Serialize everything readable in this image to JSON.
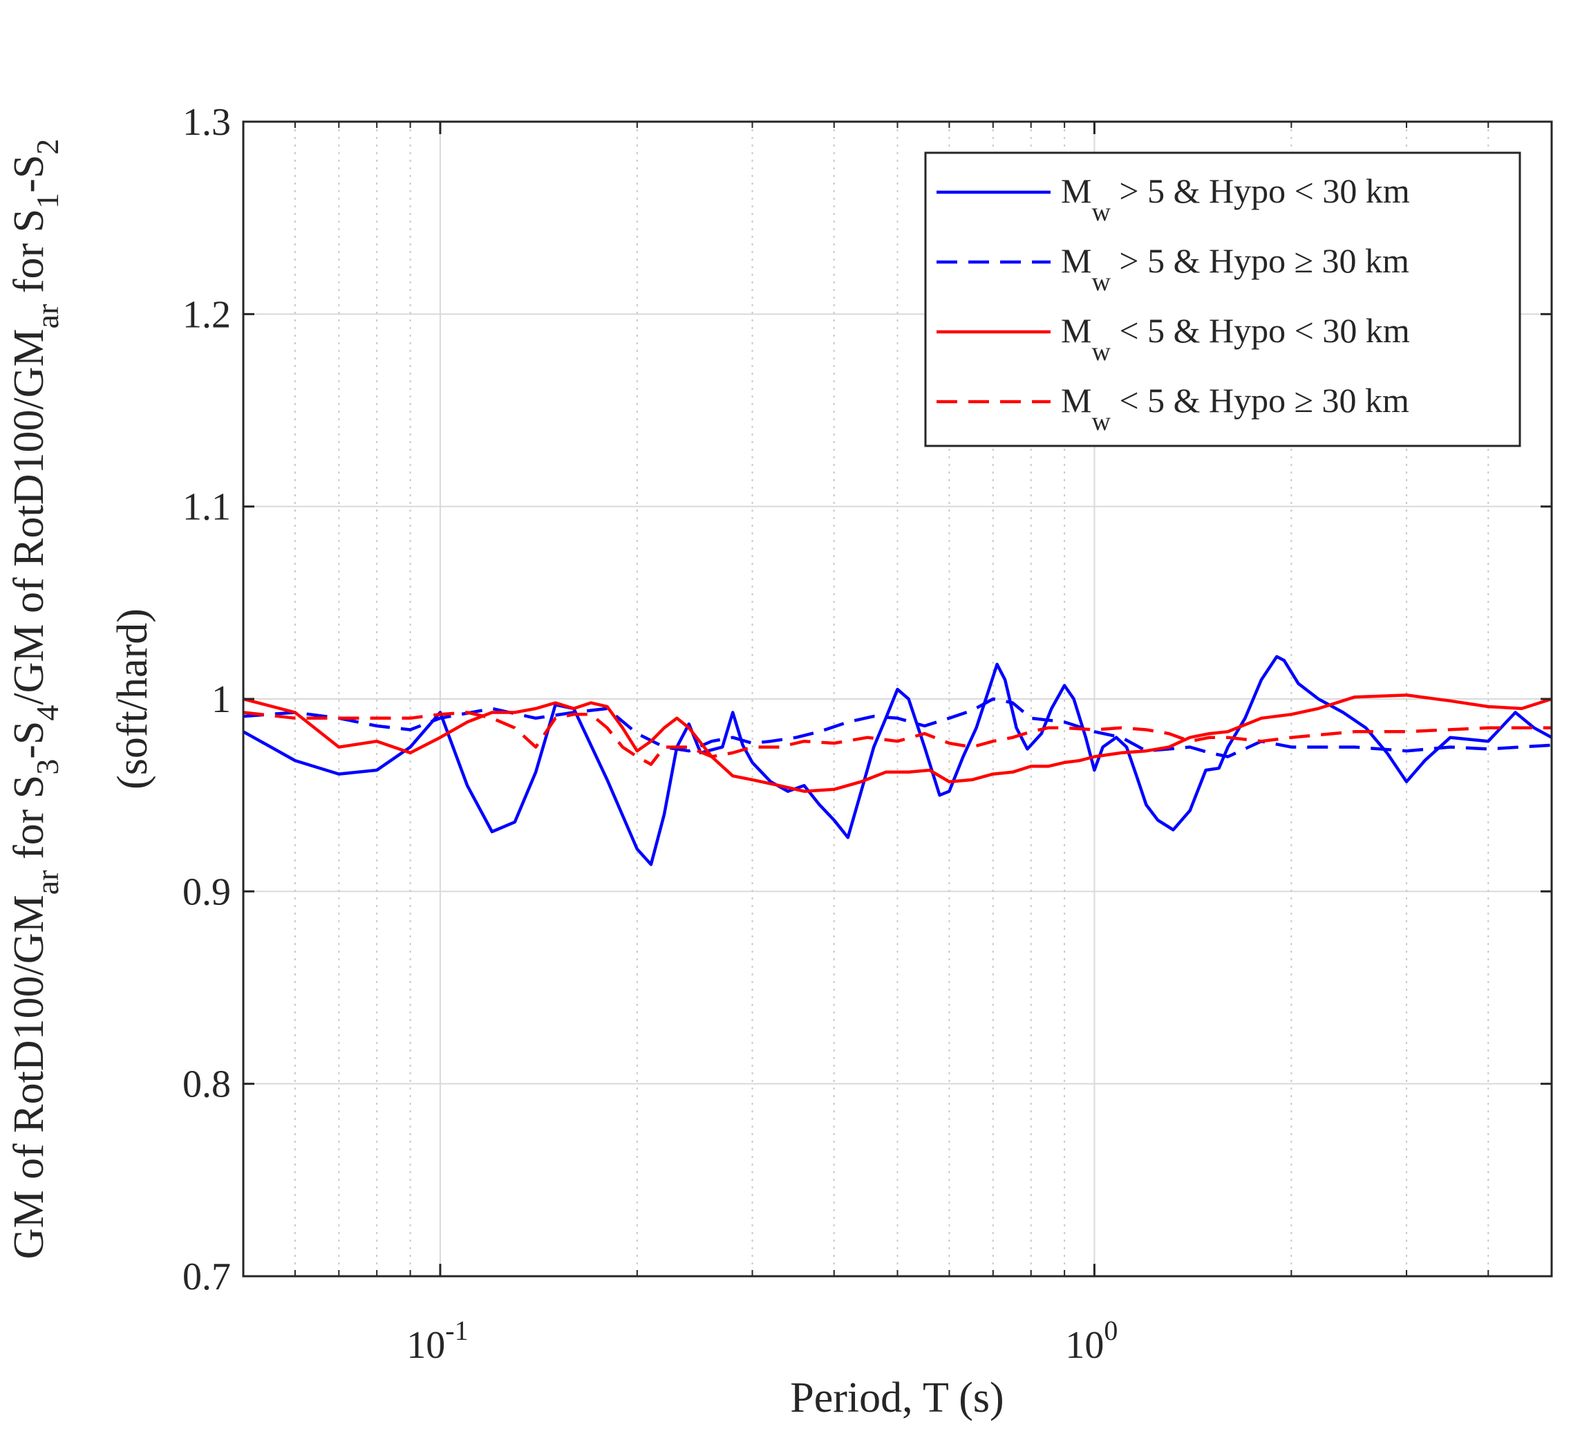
{
  "chart_data": {
    "type": "line",
    "title": "",
    "xlabel": "Period, T (s)",
    "ylabel_line1": "GM of RotD100/GM_ar for S3-S4/GM of RotD100/GM_ar for S1-S2",
    "ylabel_line2": "(soft/hard)",
    "x_scale": "log",
    "xlim": [
      0.05,
      5
    ],
    "ylim": [
      0.7,
      1.3
    ],
    "x_ticks": [
      {
        "value": 0.1,
        "base": "10",
        "exp": "-1"
      },
      {
        "value": 1,
        "base": "10",
        "exp": "0"
      }
    ],
    "y_ticks": [
      0.7,
      0.8,
      0.9,
      1.0,
      1.1,
      1.2,
      1.3
    ],
    "y_tick_labels": [
      "0.7",
      "0.8",
      "0.9",
      "1",
      "1.1",
      "1.2",
      "1.3"
    ],
    "grid": true,
    "legend_position": "top-right",
    "series": [
      {
        "name": "Mw > 5 & Hypo < 30 km",
        "color": "#0000ff",
        "dash": "solid",
        "points": [
          [
            0.05,
            0.983
          ],
          [
            0.06,
            0.968
          ],
          [
            0.07,
            0.961
          ],
          [
            0.08,
            0.963
          ],
          [
            0.09,
            0.975
          ],
          [
            0.1,
            0.993
          ],
          [
            0.11,
            0.955
          ],
          [
            0.12,
            0.931
          ],
          [
            0.13,
            0.936
          ],
          [
            0.14,
            0.962
          ],
          [
            0.15,
            0.997
          ],
          [
            0.16,
            0.995
          ],
          [
            0.18,
            0.958
          ],
          [
            0.2,
            0.922
          ],
          [
            0.21,
            0.914
          ],
          [
            0.22,
            0.94
          ],
          [
            0.23,
            0.975
          ],
          [
            0.24,
            0.987
          ],
          [
            0.25,
            0.972
          ],
          [
            0.27,
            0.975
          ],
          [
            0.28,
            0.993
          ],
          [
            0.29,
            0.976
          ],
          [
            0.3,
            0.967
          ],
          [
            0.32,
            0.957
          ],
          [
            0.34,
            0.952
          ],
          [
            0.36,
            0.955
          ],
          [
            0.38,
            0.945
          ],
          [
            0.4,
            0.937
          ],
          [
            0.42,
            0.928
          ],
          [
            0.44,
            0.952
          ],
          [
            0.46,
            0.975
          ],
          [
            0.48,
            0.99
          ],
          [
            0.5,
            1.005
          ],
          [
            0.52,
            1.0
          ],
          [
            0.55,
            0.975
          ],
          [
            0.58,
            0.95
          ],
          [
            0.6,
            0.952
          ],
          [
            0.63,
            0.97
          ],
          [
            0.66,
            0.985
          ],
          [
            0.69,
            1.005
          ],
          [
            0.71,
            1.018
          ],
          [
            0.73,
            1.01
          ],
          [
            0.76,
            0.985
          ],
          [
            0.79,
            0.974
          ],
          [
            0.83,
            0.982
          ],
          [
            0.86,
            0.995
          ],
          [
            0.9,
            1.007
          ],
          [
            0.93,
            1.0
          ],
          [
            0.97,
            0.98
          ],
          [
            1.0,
            0.963
          ],
          [
            1.03,
            0.975
          ],
          [
            1.08,
            0.98
          ],
          [
            1.12,
            0.975
          ],
          [
            1.16,
            0.96
          ],
          [
            1.2,
            0.945
          ],
          [
            1.25,
            0.937
          ],
          [
            1.32,
            0.932
          ],
          [
            1.4,
            0.942
          ],
          [
            1.48,
            0.963
          ],
          [
            1.55,
            0.964
          ],
          [
            1.6,
            0.975
          ],
          [
            1.7,
            0.99
          ],
          [
            1.8,
            1.01
          ],
          [
            1.9,
            1.022
          ],
          [
            1.95,
            1.02
          ],
          [
            2.05,
            1.008
          ],
          [
            2.2,
            1.0
          ],
          [
            2.4,
            0.993
          ],
          [
            2.6,
            0.985
          ],
          [
            2.8,
            0.972
          ],
          [
            3.0,
            0.957
          ],
          [
            3.2,
            0.968
          ],
          [
            3.5,
            0.98
          ],
          [
            4.0,
            0.978
          ],
          [
            4.4,
            0.993
          ],
          [
            4.7,
            0.985
          ],
          [
            5.0,
            0.98
          ]
        ]
      },
      {
        "name": "Mw >  5 & Hypo ≥  30 km",
        "color": "#0000ff",
        "dash": "dashed",
        "points": [
          [
            0.05,
            0.991
          ],
          [
            0.06,
            0.993
          ],
          [
            0.07,
            0.99
          ],
          [
            0.08,
            0.986
          ],
          [
            0.09,
            0.984
          ],
          [
            0.1,
            0.99
          ],
          [
            0.12,
            0.995
          ],
          [
            0.14,
            0.99
          ],
          [
            0.16,
            0.993
          ],
          [
            0.18,
            0.995
          ],
          [
            0.2,
            0.982
          ],
          [
            0.22,
            0.975
          ],
          [
            0.24,
            0.973
          ],
          [
            0.26,
            0.978
          ],
          [
            0.28,
            0.98
          ],
          [
            0.3,
            0.977
          ],
          [
            0.32,
            0.978
          ],
          [
            0.35,
            0.98
          ],
          [
            0.38,
            0.983
          ],
          [
            0.42,
            0.988
          ],
          [
            0.46,
            0.991
          ],
          [
            0.5,
            0.99
          ],
          [
            0.55,
            0.986
          ],
          [
            0.6,
            0.99
          ],
          [
            0.65,
            0.994
          ],
          [
            0.7,
            1.0
          ],
          [
            0.75,
            0.998
          ],
          [
            0.8,
            0.99
          ],
          [
            0.9,
            0.988
          ],
          [
            1.0,
            0.983
          ],
          [
            1.1,
            0.98
          ],
          [
            1.2,
            0.973
          ],
          [
            1.3,
            0.974
          ],
          [
            1.4,
            0.975
          ],
          [
            1.5,
            0.972
          ],
          [
            1.6,
            0.97
          ],
          [
            1.8,
            0.978
          ],
          [
            2.0,
            0.975
          ],
          [
            2.5,
            0.975
          ],
          [
            3.0,
            0.973
          ],
          [
            3.5,
            0.975
          ],
          [
            4.0,
            0.974
          ],
          [
            5.0,
            0.976
          ]
        ]
      },
      {
        "name": "Mw < 5 & Hypo < 30 km",
        "color": "#ff0000",
        "dash": "solid",
        "points": [
          [
            0.05,
            1.0
          ],
          [
            0.06,
            0.993
          ],
          [
            0.07,
            0.975
          ],
          [
            0.08,
            0.978
          ],
          [
            0.09,
            0.972
          ],
          [
            0.1,
            0.98
          ],
          [
            0.11,
            0.988
          ],
          [
            0.12,
            0.993
          ],
          [
            0.13,
            0.993
          ],
          [
            0.14,
            0.995
          ],
          [
            0.15,
            0.998
          ],
          [
            0.16,
            0.995
          ],
          [
            0.17,
            0.998
          ],
          [
            0.18,
            0.996
          ],
          [
            0.19,
            0.985
          ],
          [
            0.2,
            0.973
          ],
          [
            0.21,
            0.978
          ],
          [
            0.22,
            0.985
          ],
          [
            0.23,
            0.99
          ],
          [
            0.24,
            0.985
          ],
          [
            0.26,
            0.97
          ],
          [
            0.28,
            0.96
          ],
          [
            0.3,
            0.958
          ],
          [
            0.33,
            0.955
          ],
          [
            0.36,
            0.952
          ],
          [
            0.4,
            0.953
          ],
          [
            0.44,
            0.957
          ],
          [
            0.48,
            0.962
          ],
          [
            0.52,
            0.962
          ],
          [
            0.56,
            0.963
          ],
          [
            0.6,
            0.957
          ],
          [
            0.65,
            0.958
          ],
          [
            0.7,
            0.961
          ],
          [
            0.75,
            0.962
          ],
          [
            0.8,
            0.965
          ],
          [
            0.85,
            0.965
          ],
          [
            0.9,
            0.967
          ],
          [
            0.95,
            0.968
          ],
          [
            1.0,
            0.97
          ],
          [
            1.1,
            0.972
          ],
          [
            1.2,
            0.973
          ],
          [
            1.3,
            0.975
          ],
          [
            1.4,
            0.98
          ],
          [
            1.5,
            0.982
          ],
          [
            1.6,
            0.983
          ],
          [
            1.8,
            0.99
          ],
          [
            2.0,
            0.992
          ],
          [
            2.2,
            0.995
          ],
          [
            2.5,
            1.001
          ],
          [
            3.0,
            1.002
          ],
          [
            3.5,
            0.999
          ],
          [
            4.0,
            0.996
          ],
          [
            4.5,
            0.995
          ],
          [
            5.0,
            1.0
          ]
        ]
      },
      {
        "name": "Mw <  5 & Hypo ≥  30 km",
        "color": "#ff0000",
        "dash": "dashed",
        "points": [
          [
            0.05,
            0.993
          ],
          [
            0.06,
            0.99
          ],
          [
            0.07,
            0.99
          ],
          [
            0.08,
            0.99
          ],
          [
            0.09,
            0.99
          ],
          [
            0.1,
            0.992
          ],
          [
            0.11,
            0.993
          ],
          [
            0.12,
            0.99
          ],
          [
            0.13,
            0.985
          ],
          [
            0.14,
            0.975
          ],
          [
            0.15,
            0.99
          ],
          [
            0.16,
            0.992
          ],
          [
            0.17,
            0.992
          ],
          [
            0.18,
            0.985
          ],
          [
            0.19,
            0.975
          ],
          [
            0.2,
            0.97
          ],
          [
            0.21,
            0.966
          ],
          [
            0.22,
            0.975
          ],
          [
            0.24,
            0.975
          ],
          [
            0.26,
            0.97
          ],
          [
            0.28,
            0.972
          ],
          [
            0.3,
            0.975
          ],
          [
            0.33,
            0.975
          ],
          [
            0.36,
            0.978
          ],
          [
            0.4,
            0.977
          ],
          [
            0.45,
            0.98
          ],
          [
            0.5,
            0.978
          ],
          [
            0.55,
            0.982
          ],
          [
            0.6,
            0.977
          ],
          [
            0.65,
            0.975
          ],
          [
            0.7,
            0.978
          ],
          [
            0.75,
            0.98
          ],
          [
            0.8,
            0.983
          ],
          [
            0.85,
            0.985
          ],
          [
            0.9,
            0.985
          ],
          [
            1.0,
            0.984
          ],
          [
            1.1,
            0.985
          ],
          [
            1.2,
            0.984
          ],
          [
            1.3,
            0.982
          ],
          [
            1.4,
            0.978
          ],
          [
            1.5,
            0.98
          ],
          [
            1.6,
            0.98
          ],
          [
            1.8,
            0.978
          ],
          [
            2.0,
            0.98
          ],
          [
            2.5,
            0.983
          ],
          [
            3.0,
            0.983
          ],
          [
            4.0,
            0.985
          ],
          [
            5.0,
            0.985
          ]
        ]
      }
    ]
  },
  "legend": {
    "items": [
      {
        "pre": "M",
        "sub": "w",
        "post": " > 5 & Hypo < 30 km"
      },
      {
        "pre": "M",
        "sub": "w",
        "post": " >  5 & Hypo ≥  30 km"
      },
      {
        "pre": "M",
        "sub": "w",
        "post": " < 5 & Hypo < 30 km"
      },
      {
        "pre": "M",
        "sub": "w",
        "post": " <  5 & Hypo ≥  30 km"
      }
    ]
  },
  "ylabel_parts": {
    "line1": [
      {
        "t": "GM of RotD100/GM"
      },
      {
        "t": "ar",
        "sub": true
      },
      {
        "t": "  for S"
      },
      {
        "t": "3",
        "sub": true
      },
      {
        "t": "-S"
      },
      {
        "t": "4",
        "sub": true
      },
      {
        "t": "/GM of RotD100/GM"
      },
      {
        "t": "ar",
        "sub": true
      },
      {
        "t": "  for S"
      },
      {
        "t": "1",
        "sub": true
      },
      {
        "t": "-S"
      },
      {
        "t": "2",
        "sub": true
      }
    ]
  }
}
